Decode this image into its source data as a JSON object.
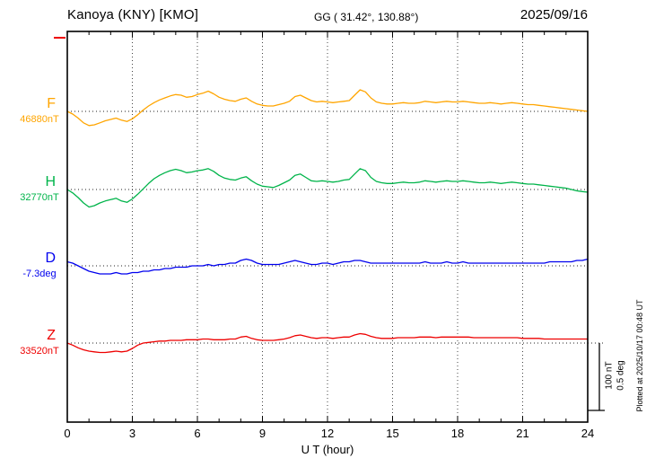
{
  "header": {
    "station": "Kanoya (KNY)  [KMO]",
    "coords": "GG ( 31.42°, 130.88°)",
    "date": "2025/09/16"
  },
  "axis": {
    "xlabel": "U T (hour)"
  },
  "scale": {
    "nt_label": "100 nT",
    "deg_label": "0.5 deg"
  },
  "footer": {
    "plotted_at": "Plotted at 2025/10/17 00:48 UT"
  },
  "chart_data": {
    "type": "line",
    "title": "Kanoya (KNY) [KMO] magnetogram 2025/09/16",
    "xlabel": "U T (hour)",
    "x_range": [
      0,
      24
    ],
    "x_ticks": [
      0,
      3,
      6,
      9,
      12,
      15,
      18,
      21,
      24
    ],
    "x_step_hours": 0.25,
    "grid": "dotted vertical at 3-hour intervals, dotted horizontal baseline per component",
    "legend_position": "left-of-axis component labels",
    "scale_bar": {
      "nT_per_division": 100,
      "deg_per_division": 0.5
    },
    "series": [
      {
        "name": "F",
        "label": "F",
        "unit": "nT",
        "color": "#ffa500",
        "baseline_value": 46880,
        "baseline_label": "46880nT",
        "values": [
          0,
          -4,
          -10,
          -17,
          -21,
          -20,
          -17,
          -14,
          -12,
          -10,
          -13,
          -15,
          -11,
          -5,
          2,
          8,
          13,
          17,
          20,
          23,
          25,
          24,
          21,
          22,
          25,
          27,
          30,
          26,
          21,
          18,
          16,
          15,
          18,
          20,
          15,
          11,
          9,
          8,
          8,
          10,
          12,
          15,
          22,
          24,
          20,
          16,
          14,
          15,
          14,
          13,
          14,
          15,
          16,
          24,
          32,
          29,
          20,
          14,
          12,
          11,
          11,
          12,
          13,
          12,
          12,
          13,
          15,
          14,
          13,
          14,
          15,
          14,
          14,
          15,
          14,
          13,
          12,
          12,
          13,
          12,
          11,
          12,
          13,
          12,
          11,
          10,
          10,
          9,
          8,
          7,
          6,
          5,
          4,
          3,
          2,
          1,
          0
        ]
      },
      {
        "name": "H",
        "label": "H",
        "unit": "nT",
        "color": "#00b44a",
        "baseline_value": 32770,
        "baseline_label": "32770nT",
        "values": [
          0,
          -5,
          -12,
          -20,
          -26,
          -24,
          -20,
          -17,
          -15,
          -13,
          -17,
          -19,
          -14,
          -7,
          1,
          9,
          16,
          21,
          25,
          28,
          30,
          28,
          25,
          26,
          28,
          29,
          31,
          27,
          21,
          17,
          15,
          14,
          17,
          19,
          13,
          8,
          5,
          4,
          3,
          6,
          10,
          14,
          21,
          23,
          18,
          13,
          12,
          13,
          12,
          11,
          12,
          14,
          15,
          23,
          31,
          28,
          18,
          12,
          10,
          9,
          9,
          10,
          11,
          10,
          10,
          11,
          13,
          12,
          11,
          12,
          13,
          12,
          12,
          13,
          12,
          11,
          10,
          10,
          11,
          10,
          9,
          10,
          11,
          10,
          9,
          8,
          8,
          7,
          6,
          5,
          4,
          3,
          2,
          0,
          -2,
          -3,
          -4
        ]
      },
      {
        "name": "D",
        "label": "D",
        "unit": "deg",
        "color": "#0000ee",
        "baseline_value": -7.3,
        "baseline_label": "-7.3deg",
        "values": [
          0.03,
          0.02,
          0,
          -0.02,
          -0.04,
          -0.05,
          -0.06,
          -0.06,
          -0.06,
          -0.05,
          -0.06,
          -0.06,
          -0.05,
          -0.05,
          -0.04,
          -0.04,
          -0.03,
          -0.03,
          -0.02,
          -0.02,
          -0.01,
          -0.01,
          -0.01,
          0,
          0,
          0,
          0.01,
          0,
          0.01,
          0.01,
          0.02,
          0.02,
          0.04,
          0.05,
          0.04,
          0.02,
          0.01,
          0.01,
          0.01,
          0.01,
          0.02,
          0.03,
          0.04,
          0.03,
          0.02,
          0.01,
          0.01,
          0.02,
          0.02,
          0.01,
          0.02,
          0.03,
          0.03,
          0.04,
          0.04,
          0.03,
          0.02,
          0.02,
          0.02,
          0.02,
          0.02,
          0.02,
          0.02,
          0.02,
          0.02,
          0.02,
          0.03,
          0.02,
          0.02,
          0.02,
          0.03,
          0.02,
          0.02,
          0.03,
          0.02,
          0.02,
          0.02,
          0.02,
          0.02,
          0.02,
          0.02,
          0.02,
          0.02,
          0.02,
          0.02,
          0.02,
          0.02,
          0.02,
          0.02,
          0.03,
          0.03,
          0.03,
          0.03,
          0.03,
          0.04,
          0.04,
          0.05
        ]
      },
      {
        "name": "Z",
        "label": "Z",
        "unit": "nT",
        "color": "#ee0000",
        "baseline_value": 33520,
        "baseline_label": "33520nT",
        "values": [
          0,
          -3,
          -7,
          -10,
          -12,
          -13,
          -14,
          -14,
          -13,
          -12,
          -13,
          -12,
          -8,
          -3,
          0,
          1,
          2,
          3,
          3,
          4,
          4,
          4,
          5,
          5,
          5,
          6,
          6,
          5,
          5,
          5,
          6,
          6,
          9,
          10,
          7,
          5,
          4,
          4,
          4,
          5,
          6,
          8,
          11,
          12,
          10,
          8,
          7,
          8,
          8,
          7,
          8,
          9,
          9,
          12,
          14,
          13,
          10,
          8,
          7,
          7,
          7,
          8,
          8,
          8,
          8,
          9,
          9,
          9,
          8,
          9,
          9,
          9,
          9,
          9,
          9,
          8,
          8,
          8,
          8,
          8,
          8,
          8,
          8,
          8,
          7,
          7,
          7,
          7,
          6,
          6,
          6,
          6,
          6,
          6,
          6,
          6,
          6
        ]
      }
    ]
  }
}
